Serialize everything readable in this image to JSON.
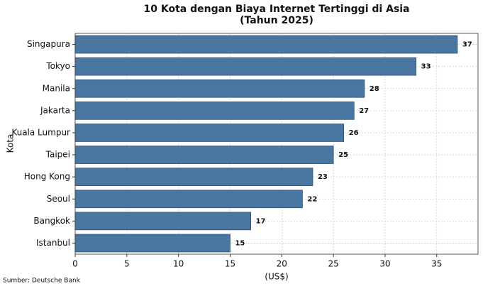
{
  "chart_data": {
    "type": "barh",
    "title": "10 Kota dengan Biaya Internet Tertinggi di Asia",
    "subtitle": "(Tahun 2025)",
    "categories": [
      "Singapura",
      "Tokyo",
      "Manila",
      "Jakarta",
      "Kuala Lumpur",
      "Taipei",
      "Hong Kong",
      "Seoul",
      "Bangkok",
      "Istanbul"
    ],
    "values": [
      37,
      33,
      28,
      27,
      26,
      25,
      23,
      22,
      17,
      15
    ],
    "color": "#4a77a2",
    "x_label": "(US$)",
    "y_label": "Kota",
    "xlim": [
      0,
      39
    ],
    "xticks": [
      0,
      5,
      10,
      15,
      20,
      25,
      30,
      35
    ],
    "grid": true,
    "source": "Sumber: Deutsche Bank"
  }
}
